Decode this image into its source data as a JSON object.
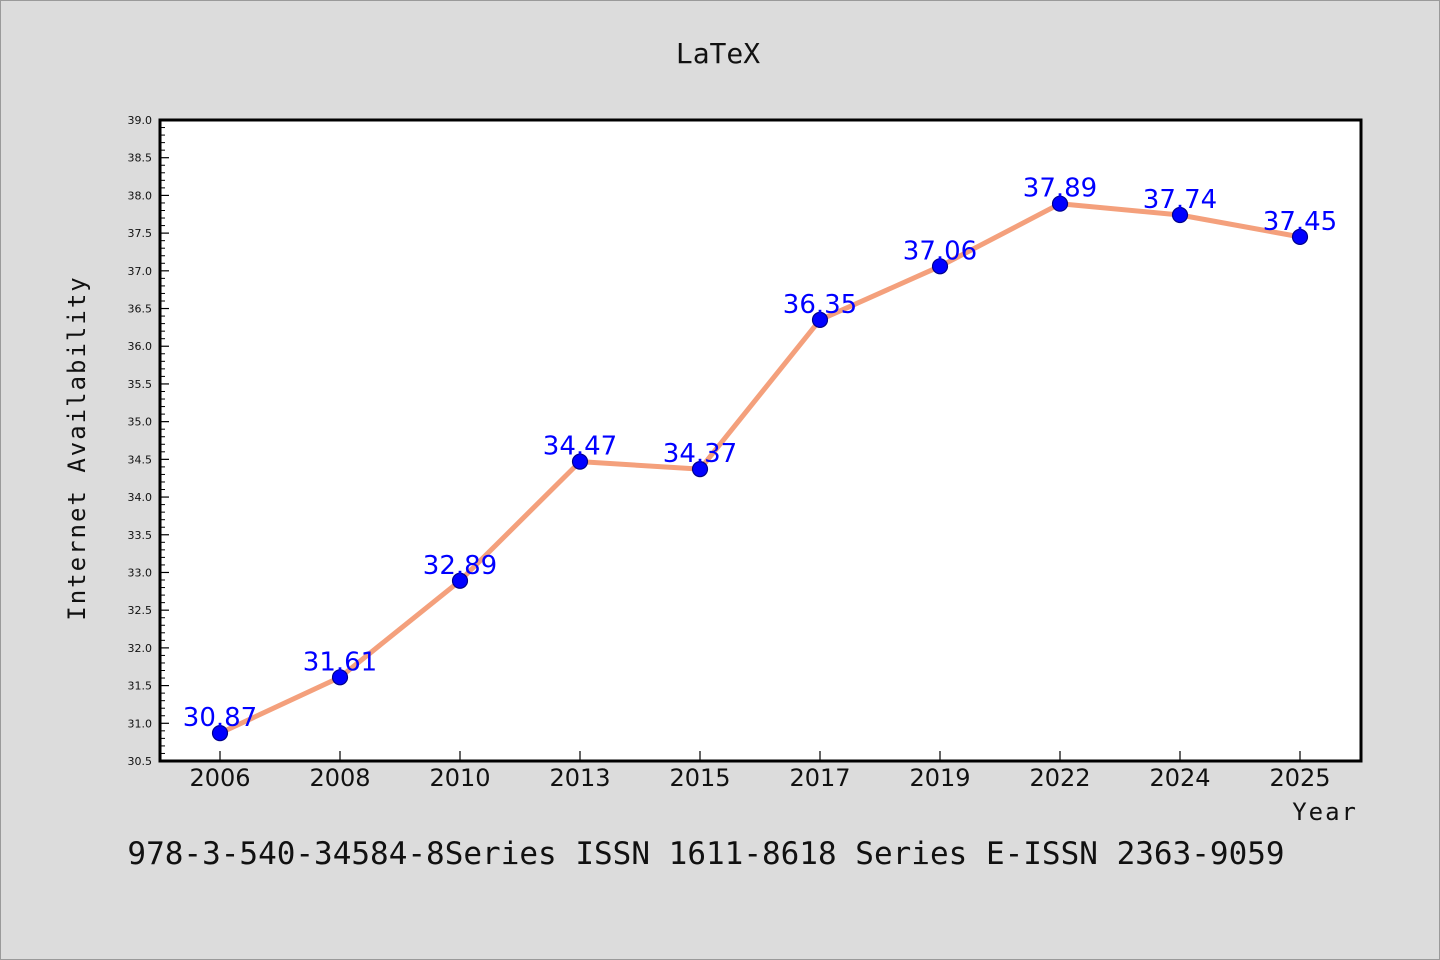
{
  "chart_data": {
    "type": "line",
    "title": "LaTeX",
    "xlabel": "Year",
    "ylabel": "Internet Availability",
    "categories": [
      "2006",
      "2008",
      "2010",
      "2013",
      "2015",
      "2017",
      "2019",
      "2022",
      "2024",
      "2025"
    ],
    "series": [
      {
        "values": [
          30.87,
          31.61,
          32.89,
          34.47,
          34.37,
          36.35,
          37.06,
          37.89,
          37.74,
          37.45
        ],
        "data_labels": [
          "30.87",
          "31.61",
          "32.89",
          "34.47",
          "34.37",
          "36.35",
          "37.06",
          "37.89",
          "37.74",
          "37.45"
        ],
        "line_color": "#f4a07c",
        "marker_color": "#0000ff"
      }
    ],
    "ylim": [
      30.5,
      39.0
    ],
    "yticks": [
      "30.5",
      "31.0",
      "31.5",
      "32.0",
      "32.5",
      "33.0",
      "33.5",
      "34.0",
      "34.5",
      "35.0",
      "35.5",
      "36.0",
      "36.5",
      "37.0",
      "37.5",
      "38.0",
      "38.5",
      "39.0"
    ],
    "grid": false,
    "legend": "none"
  },
  "footer": {
    "text": "978-3-540-34584-8Series ISSN 1611-8618 Series E-ISSN 2363-9059"
  },
  "colors": {
    "background": "#dcdcdc",
    "plot_area": "#ffffff"
  }
}
